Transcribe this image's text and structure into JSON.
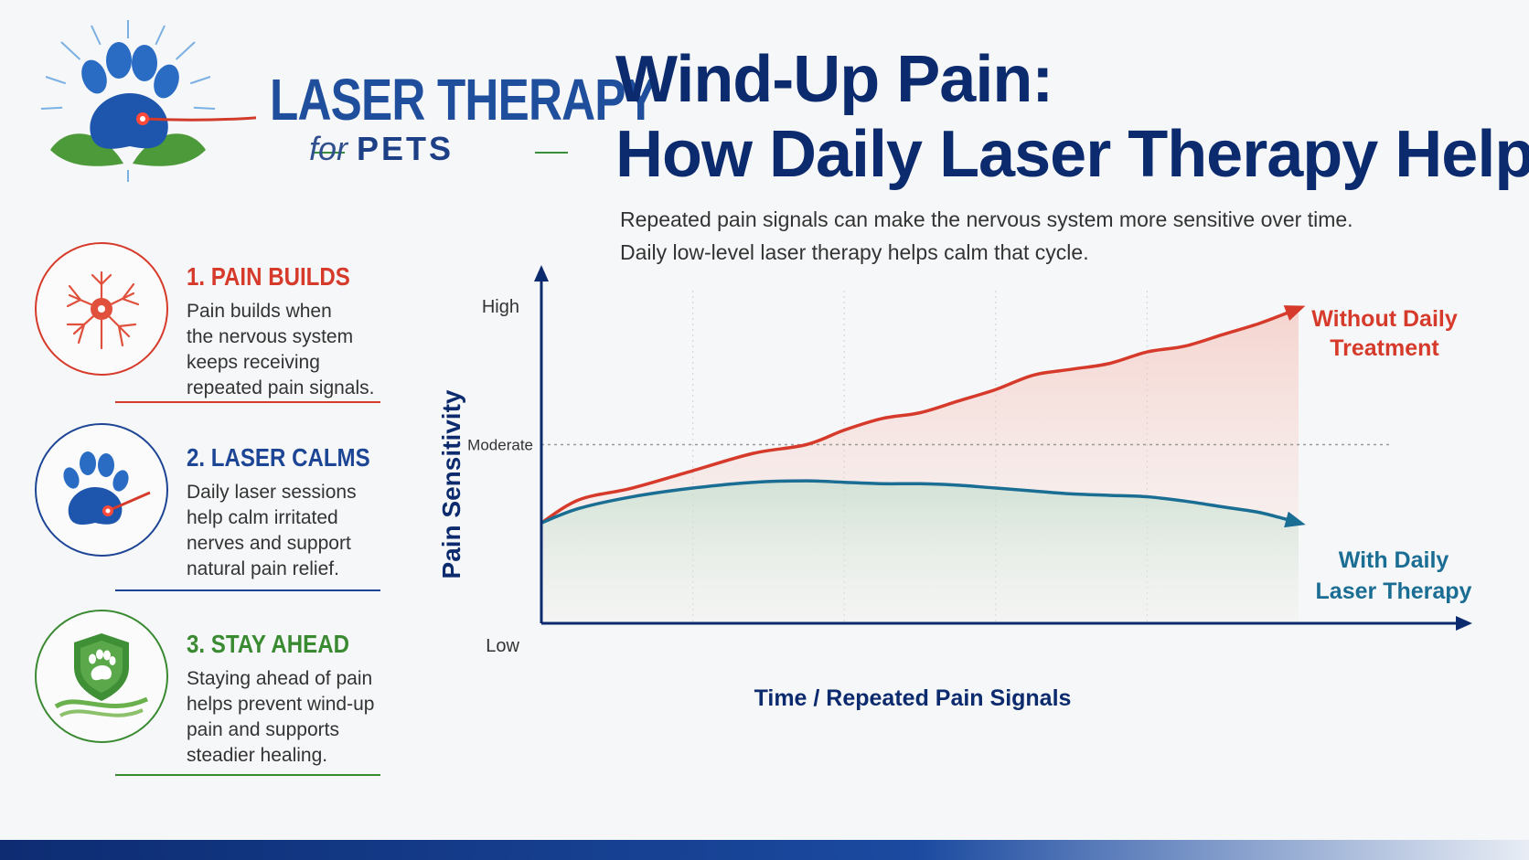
{
  "logo": {
    "title": "LASER THERAPY",
    "for": "for",
    "pets": "PETS"
  },
  "title": {
    "line1": "Wind-Up Pain:",
    "line2": "How Daily Laser Therapy Helps"
  },
  "intro": {
    "line1": "Repeated pain signals can make the nervous system more sensitive over time.",
    "line2": "Daily low-level laser therapy helps calm that cycle."
  },
  "steps": [
    {
      "heading": "1. PAIN BUILDS",
      "lines": [
        "Pain builds when",
        "the nervous system",
        "keeps receiving",
        "repeated pain signals."
      ],
      "color": "#d63a2a",
      "icon": "nerve-cell-icon"
    },
    {
      "heading": "2. LASER CALMS",
      "lines": [
        "Daily laser sessions",
        "help calm irritated",
        "nerves and support",
        "natural pain relief."
      ],
      "color": "#1d4595",
      "icon": "paw-laser-icon"
    },
    {
      "heading": "3. STAY AHEAD",
      "lines": [
        "Staying ahead of pain",
        "helps prevent wind-up",
        "pain and supports",
        "steadier healing."
      ],
      "color": "#3a8a32",
      "icon": "paw-shield-icon"
    }
  ],
  "chart_data": {
    "type": "line",
    "xlabel": "Time / Repeated Pain Signals",
    "ylabel": "Pain Sensitivity",
    "ytick_labels": [
      "Low",
      "Moderate",
      "High"
    ],
    "yticks": [
      0,
      50,
      100
    ],
    "ylim": [
      0,
      100
    ],
    "xlim": [
      0,
      100
    ],
    "moderate_line": 50,
    "grid_vertical": true,
    "series": [
      {
        "label_lines": [
          "Without Daily",
          "Treatment"
        ],
        "color": "#d63a2a",
        "x": [
          0,
          5,
          12,
          20,
          28,
          35,
          40,
          45,
          50,
          55,
          60,
          65,
          70,
          75,
          80,
          85,
          90,
          95,
          100
        ],
        "values": [
          23,
          31,
          35,
          41,
          47,
          50,
          55,
          59,
          61,
          65,
          69,
          74,
          76,
          78,
          82,
          84,
          88,
          92,
          97
        ]
      },
      {
        "label_lines": [
          "With Daily",
          "Laser Therapy"
        ],
        "color": "#1a6d93",
        "x": [
          0,
          5,
          12,
          20,
          28,
          35,
          40,
          45,
          50,
          55,
          60,
          65,
          70,
          75,
          80,
          85,
          90,
          95,
          100
        ],
        "values": [
          23,
          28,
          32,
          35,
          37,
          37.5,
          37,
          36.5,
          36.5,
          36,
          35,
          34,
          33,
          32.5,
          32,
          30.5,
          28.5,
          26.5,
          23
        ]
      }
    ]
  }
}
